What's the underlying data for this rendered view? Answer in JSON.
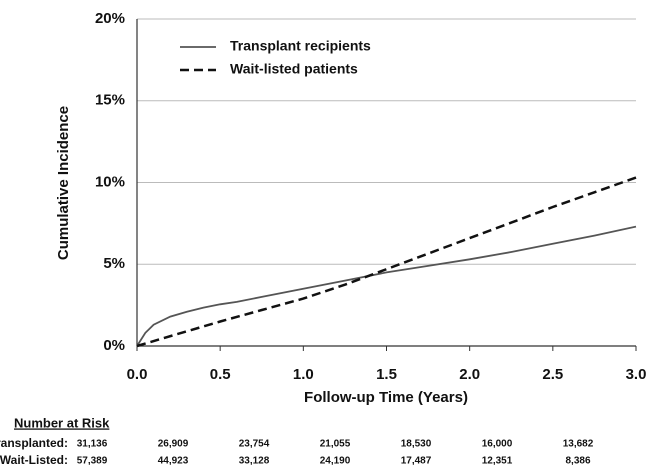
{
  "chart_data": {
    "type": "line",
    "ylabel": "Cumulative Incidence",
    "xlabel": "Follow-up Time (Years)",
    "xlim": [
      0,
      3
    ],
    "ylim": [
      0,
      20
    ],
    "xticks": [
      {
        "value": 0,
        "label": "0.0"
      },
      0.5,
      {
        "value": 1,
        "label": "1.0"
      },
      1.5,
      {
        "value": 2,
        "label": "2.0"
      },
      2.5,
      {
        "value": 3,
        "label": "3.0"
      }
    ],
    "yticks": [
      {
        "value": 0,
        "label": "0%"
      },
      {
        "value": 5,
        "label": "5%"
      },
      {
        "value": 10,
        "label": "10%"
      },
      {
        "value": 15,
        "label": "15%"
      },
      {
        "value": 20,
        "label": "20%"
      }
    ],
    "grid": true,
    "legend": "upper left",
    "series": [
      {
        "name": "Transplant recipients",
        "color": "#555555",
        "style": "solid",
        "x": [
          0,
          0.05,
          0.1,
          0.2,
          0.3,
          0.4,
          0.5,
          0.6,
          0.75,
          1.0,
          1.25,
          1.5,
          1.75,
          2.0,
          2.25,
          2.5,
          2.75,
          3.0
        ],
        "values": [
          0,
          0.8,
          1.3,
          1.8,
          2.1,
          2.35,
          2.55,
          2.7,
          3.0,
          3.5,
          4.0,
          4.5,
          4.9,
          5.3,
          5.75,
          6.25,
          6.75,
          7.3
        ]
      },
      {
        "name": "Wait-listed patients",
        "color": "#111111",
        "style": "dashed",
        "x": [
          0,
          0.25,
          0.5,
          0.75,
          1.0,
          1.25,
          1.5,
          1.75,
          2.0,
          2.25,
          2.5,
          2.75,
          3.0
        ],
        "values": [
          0,
          0.75,
          1.5,
          2.2,
          2.9,
          3.75,
          4.7,
          5.65,
          6.6,
          7.55,
          8.5,
          9.4,
          10.3
        ]
      }
    ]
  },
  "risk_table": {
    "title": "Number at Risk",
    "rows": [
      {
        "label": "Transplanted:",
        "values": [
          "31,136",
          "26,909",
          "23,754",
          "21,055",
          "18,530",
          "16,000",
          "13,682"
        ]
      },
      {
        "label": "Wait-Listed:",
        "values": [
          "57,389",
          "44,923",
          "33,128",
          "24,190",
          "17,487",
          "12,351",
          "8,386"
        ]
      }
    ]
  }
}
